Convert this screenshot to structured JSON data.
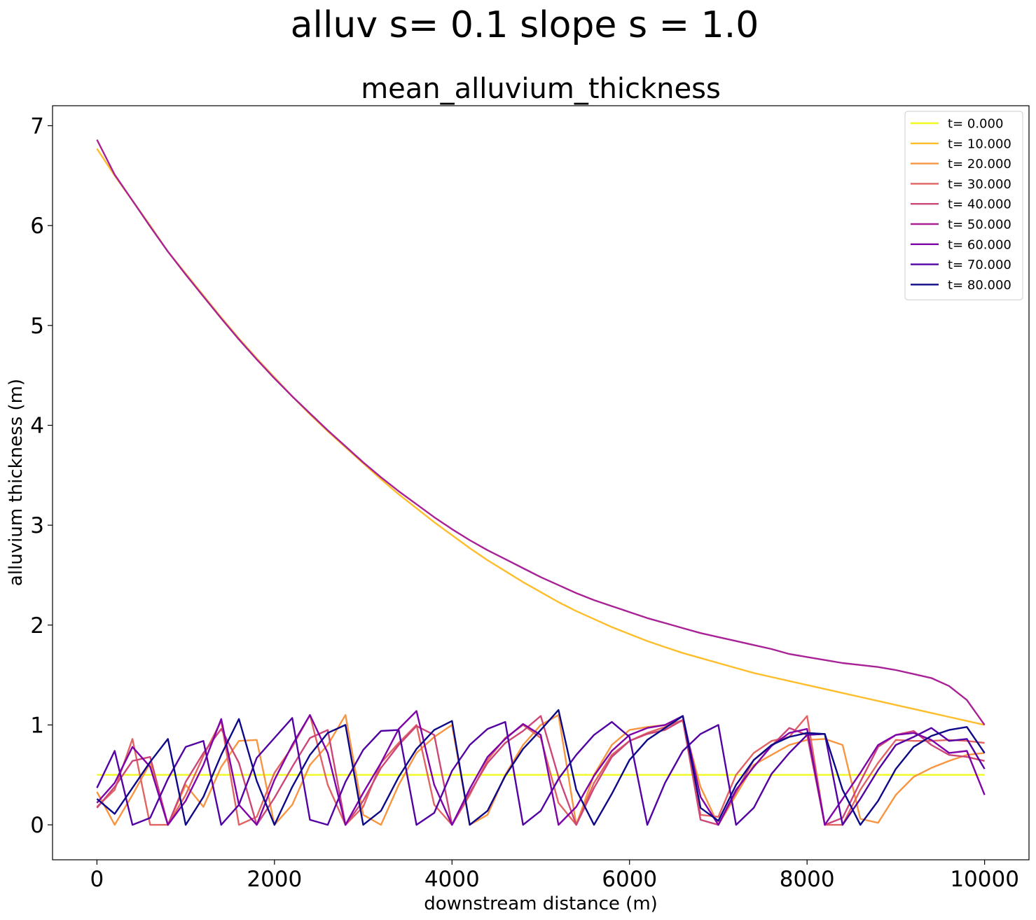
{
  "figure": {
    "suptitle": "alluv s= 0.1     slope s = 1.0"
  },
  "chart_data": {
    "type": "line",
    "title": "mean_alluvium_thickness",
    "xlabel": "downstream distance (m)",
    "ylabel": "alluvium thickness (m)",
    "xlim": [
      -500,
      10500
    ],
    "ylim": [
      -0.35,
      7.2
    ],
    "xticks": [
      0,
      2000,
      4000,
      6000,
      8000,
      10000
    ],
    "yticks": [
      0,
      1,
      2,
      3,
      4,
      5,
      6,
      7
    ],
    "grid": false,
    "legend_position": "top-right",
    "x": [
      0,
      200,
      400,
      600,
      800,
      1000,
      1200,
      1400,
      1600,
      1800,
      2000,
      2200,
      2400,
      2600,
      2800,
      3000,
      3200,
      3400,
      3600,
      3800,
      4000,
      4200,
      4400,
      4600,
      4800,
      5000,
      5200,
      5400,
      5600,
      5800,
      6000,
      6200,
      6400,
      6600,
      6800,
      7000,
      7200,
      7400,
      7600,
      7800,
      8000,
      8200,
      8400,
      8600,
      8800,
      9000,
      9200,
      9400,
      9600,
      9800,
      10000
    ],
    "series": [
      {
        "name": "t= 0.000",
        "color": "#f0f921",
        "values": [
          0.5,
          0.5,
          0.5,
          0.5,
          0.5,
          0.5,
          0.5,
          0.5,
          0.5,
          0.5,
          0.5,
          0.5,
          0.5,
          0.5,
          0.5,
          0.5,
          0.5,
          0.5,
          0.5,
          0.5,
          0.5,
          0.5,
          0.5,
          0.5,
          0.5,
          0.5,
          0.5,
          0.5,
          0.5,
          0.5,
          0.5,
          0.5,
          0.5,
          0.5,
          0.5,
          0.5,
          0.5,
          0.5,
          0.5,
          0.5,
          0.5,
          0.5,
          0.5,
          0.5,
          0.5,
          0.5,
          0.5,
          0.5,
          0.5,
          0.5,
          0.5
        ]
      },
      {
        "name": "t= 10.000",
        "color": "#febd2a",
        "values": [
          6.77,
          6.5,
          6.25,
          6.0,
          5.74,
          5.52,
          5.3,
          5.08,
          4.87,
          4.67,
          4.48,
          4.29,
          4.11,
          3.94,
          3.78,
          3.62,
          3.46,
          3.31,
          3.17,
          3.03,
          2.9,
          2.77,
          2.65,
          2.54,
          2.43,
          2.33,
          2.23,
          2.14,
          2.06,
          1.98,
          1.91,
          1.84,
          1.78,
          1.72,
          1.67,
          1.62,
          1.57,
          1.52,
          1.48,
          1.44,
          1.4,
          1.36,
          1.32,
          1.28,
          1.24,
          1.2,
          1.16,
          1.12,
          1.08,
          1.04,
          1.0
        ]
      },
      {
        "name": "t= 20.000",
        "color": "#f89540",
        "values": [
          0.33,
          0.0,
          0.3,
          0.62,
          0.0,
          0.4,
          0.18,
          0.58,
          0.84,
          0.85,
          0.0,
          0.2,
          0.6,
          0.8,
          1.1,
          0.1,
          0.0,
          0.4,
          0.72,
          0.88,
          1.0,
          0.0,
          0.1,
          0.5,
          0.8,
          1.0,
          1.1,
          0.0,
          0.5,
          0.8,
          0.95,
          0.98,
          1.0,
          1.04,
          0.38,
          0.0,
          0.3,
          0.6,
          0.7,
          0.8,
          0.85,
          0.86,
          0.8,
          0.06,
          0.02,
          0.3,
          0.48,
          0.57,
          0.64,
          0.7,
          0.72
        ]
      },
      {
        "name": "t= 30.000",
        "color": "#e16462",
        "values": [
          0.18,
          0.35,
          0.86,
          0.0,
          0.0,
          0.3,
          0.69,
          1.04,
          0.0,
          0.08,
          0.52,
          0.78,
          1.1,
          0.4,
          0.0,
          0.18,
          0.62,
          0.82,
          1.0,
          0.2,
          0.0,
          0.3,
          0.65,
          0.87,
          1.0,
          0.87,
          0.22,
          0.0,
          0.42,
          0.7,
          0.84,
          0.92,
          0.98,
          1.05,
          0.1,
          0.08,
          0.5,
          0.72,
          0.84,
          0.88,
          1.09,
          0.0,
          0.0,
          0.35,
          0.62,
          0.85,
          0.84,
          0.84,
          0.85,
          0.84,
          0.82
        ]
      },
      {
        "name": "t= 40.000",
        "color": "#cc4778",
        "values": [
          0.17,
          0.38,
          0.64,
          0.68,
          0.0,
          0.43,
          0.72,
          0.96,
          0.62,
          0.0,
          0.27,
          0.58,
          0.87,
          0.95,
          0.0,
          0.24,
          0.57,
          0.8,
          0.99,
          0.9,
          0.0,
          0.32,
          0.62,
          0.82,
          0.94,
          1.09,
          0.48,
          0.0,
          0.37,
          0.68,
          0.84,
          0.91,
          0.95,
          1.05,
          0.05,
          0.0,
          0.33,
          0.65,
          0.79,
          0.97,
          0.9,
          0.0,
          0.07,
          0.43,
          0.78,
          0.9,
          0.94,
          0.8,
          0.7,
          0.68,
          0.64
        ]
      },
      {
        "name": "t= 50.000",
        "color": "#a82296",
        "values": [
          6.86,
          6.51,
          6.25,
          5.99,
          5.74,
          5.51,
          5.29,
          5.07,
          4.86,
          4.66,
          4.47,
          4.29,
          4.12,
          3.95,
          3.79,
          3.63,
          3.48,
          3.34,
          3.21,
          3.08,
          2.96,
          2.85,
          2.75,
          2.66,
          2.57,
          2.48,
          2.4,
          2.32,
          2.25,
          2.19,
          2.13,
          2.07,
          2.02,
          1.97,
          1.92,
          1.88,
          1.84,
          1.8,
          1.76,
          1.71,
          1.68,
          1.65,
          1.62,
          1.6,
          1.58,
          1.55,
          1.51,
          1.47,
          1.39,
          1.25,
          1.0
        ]
      },
      {
        "name": "t= 60.000",
        "color": "#7e03a8",
        "values": [
          0.22,
          0.42,
          0.78,
          0.58,
          0.0,
          0.24,
          0.6,
          1.06,
          0.2,
          0.0,
          0.45,
          0.8,
          1.1,
          0.72,
          0.0,
          0.32,
          0.62,
          0.96,
          1.14,
          0.4,
          0.0,
          0.36,
          0.68,
          0.86,
          1.01,
          0.9,
          0.0,
          0.18,
          0.49,
          0.74,
          0.9,
          0.97,
          1.0,
          1.09,
          0.28,
          0.0,
          0.35,
          0.58,
          0.79,
          0.92,
          0.96,
          0.0,
          0.26,
          0.52,
          0.8,
          0.9,
          0.92,
          0.85,
          0.72,
          0.74,
          0.3
        ]
      },
      {
        "name": "t= 70.000",
        "color": "#5302a3",
        "values": [
          0.37,
          0.74,
          0.0,
          0.07,
          0.46,
          0.78,
          0.84,
          0.0,
          0.2,
          0.67,
          0.87,
          1.07,
          0.05,
          0.0,
          0.43,
          0.75,
          0.94,
          0.95,
          0.0,
          0.12,
          0.54,
          0.8,
          0.96,
          1.03,
          0.0,
          0.14,
          0.46,
          0.7,
          0.9,
          1.03,
          0.88,
          0.0,
          0.42,
          0.74,
          0.91,
          1.0,
          0.0,
          0.17,
          0.51,
          0.72,
          0.9,
          0.91,
          0.0,
          0.26,
          0.55,
          0.8,
          0.88,
          0.97,
          0.84,
          0.86,
          0.56
        ]
      },
      {
        "name": "t= 80.000",
        "color": "#0d0887",
        "values": [
          0.26,
          0.11,
          0.37,
          0.63,
          0.86,
          0.0,
          0.28,
          0.7,
          1.06,
          0.44,
          0.0,
          0.38,
          0.7,
          0.92,
          1.0,
          0.0,
          0.14,
          0.48,
          0.76,
          0.95,
          1.04,
          0.0,
          0.14,
          0.49,
          0.76,
          0.95,
          1.15,
          0.35,
          0.0,
          0.31,
          0.65,
          0.85,
          0.97,
          1.09,
          0.17,
          0.04,
          0.4,
          0.65,
          0.8,
          0.88,
          0.92,
          0.91,
          0.35,
          0.0,
          0.24,
          0.56,
          0.78,
          0.89,
          0.95,
          0.98,
          0.72
        ]
      }
    ]
  }
}
